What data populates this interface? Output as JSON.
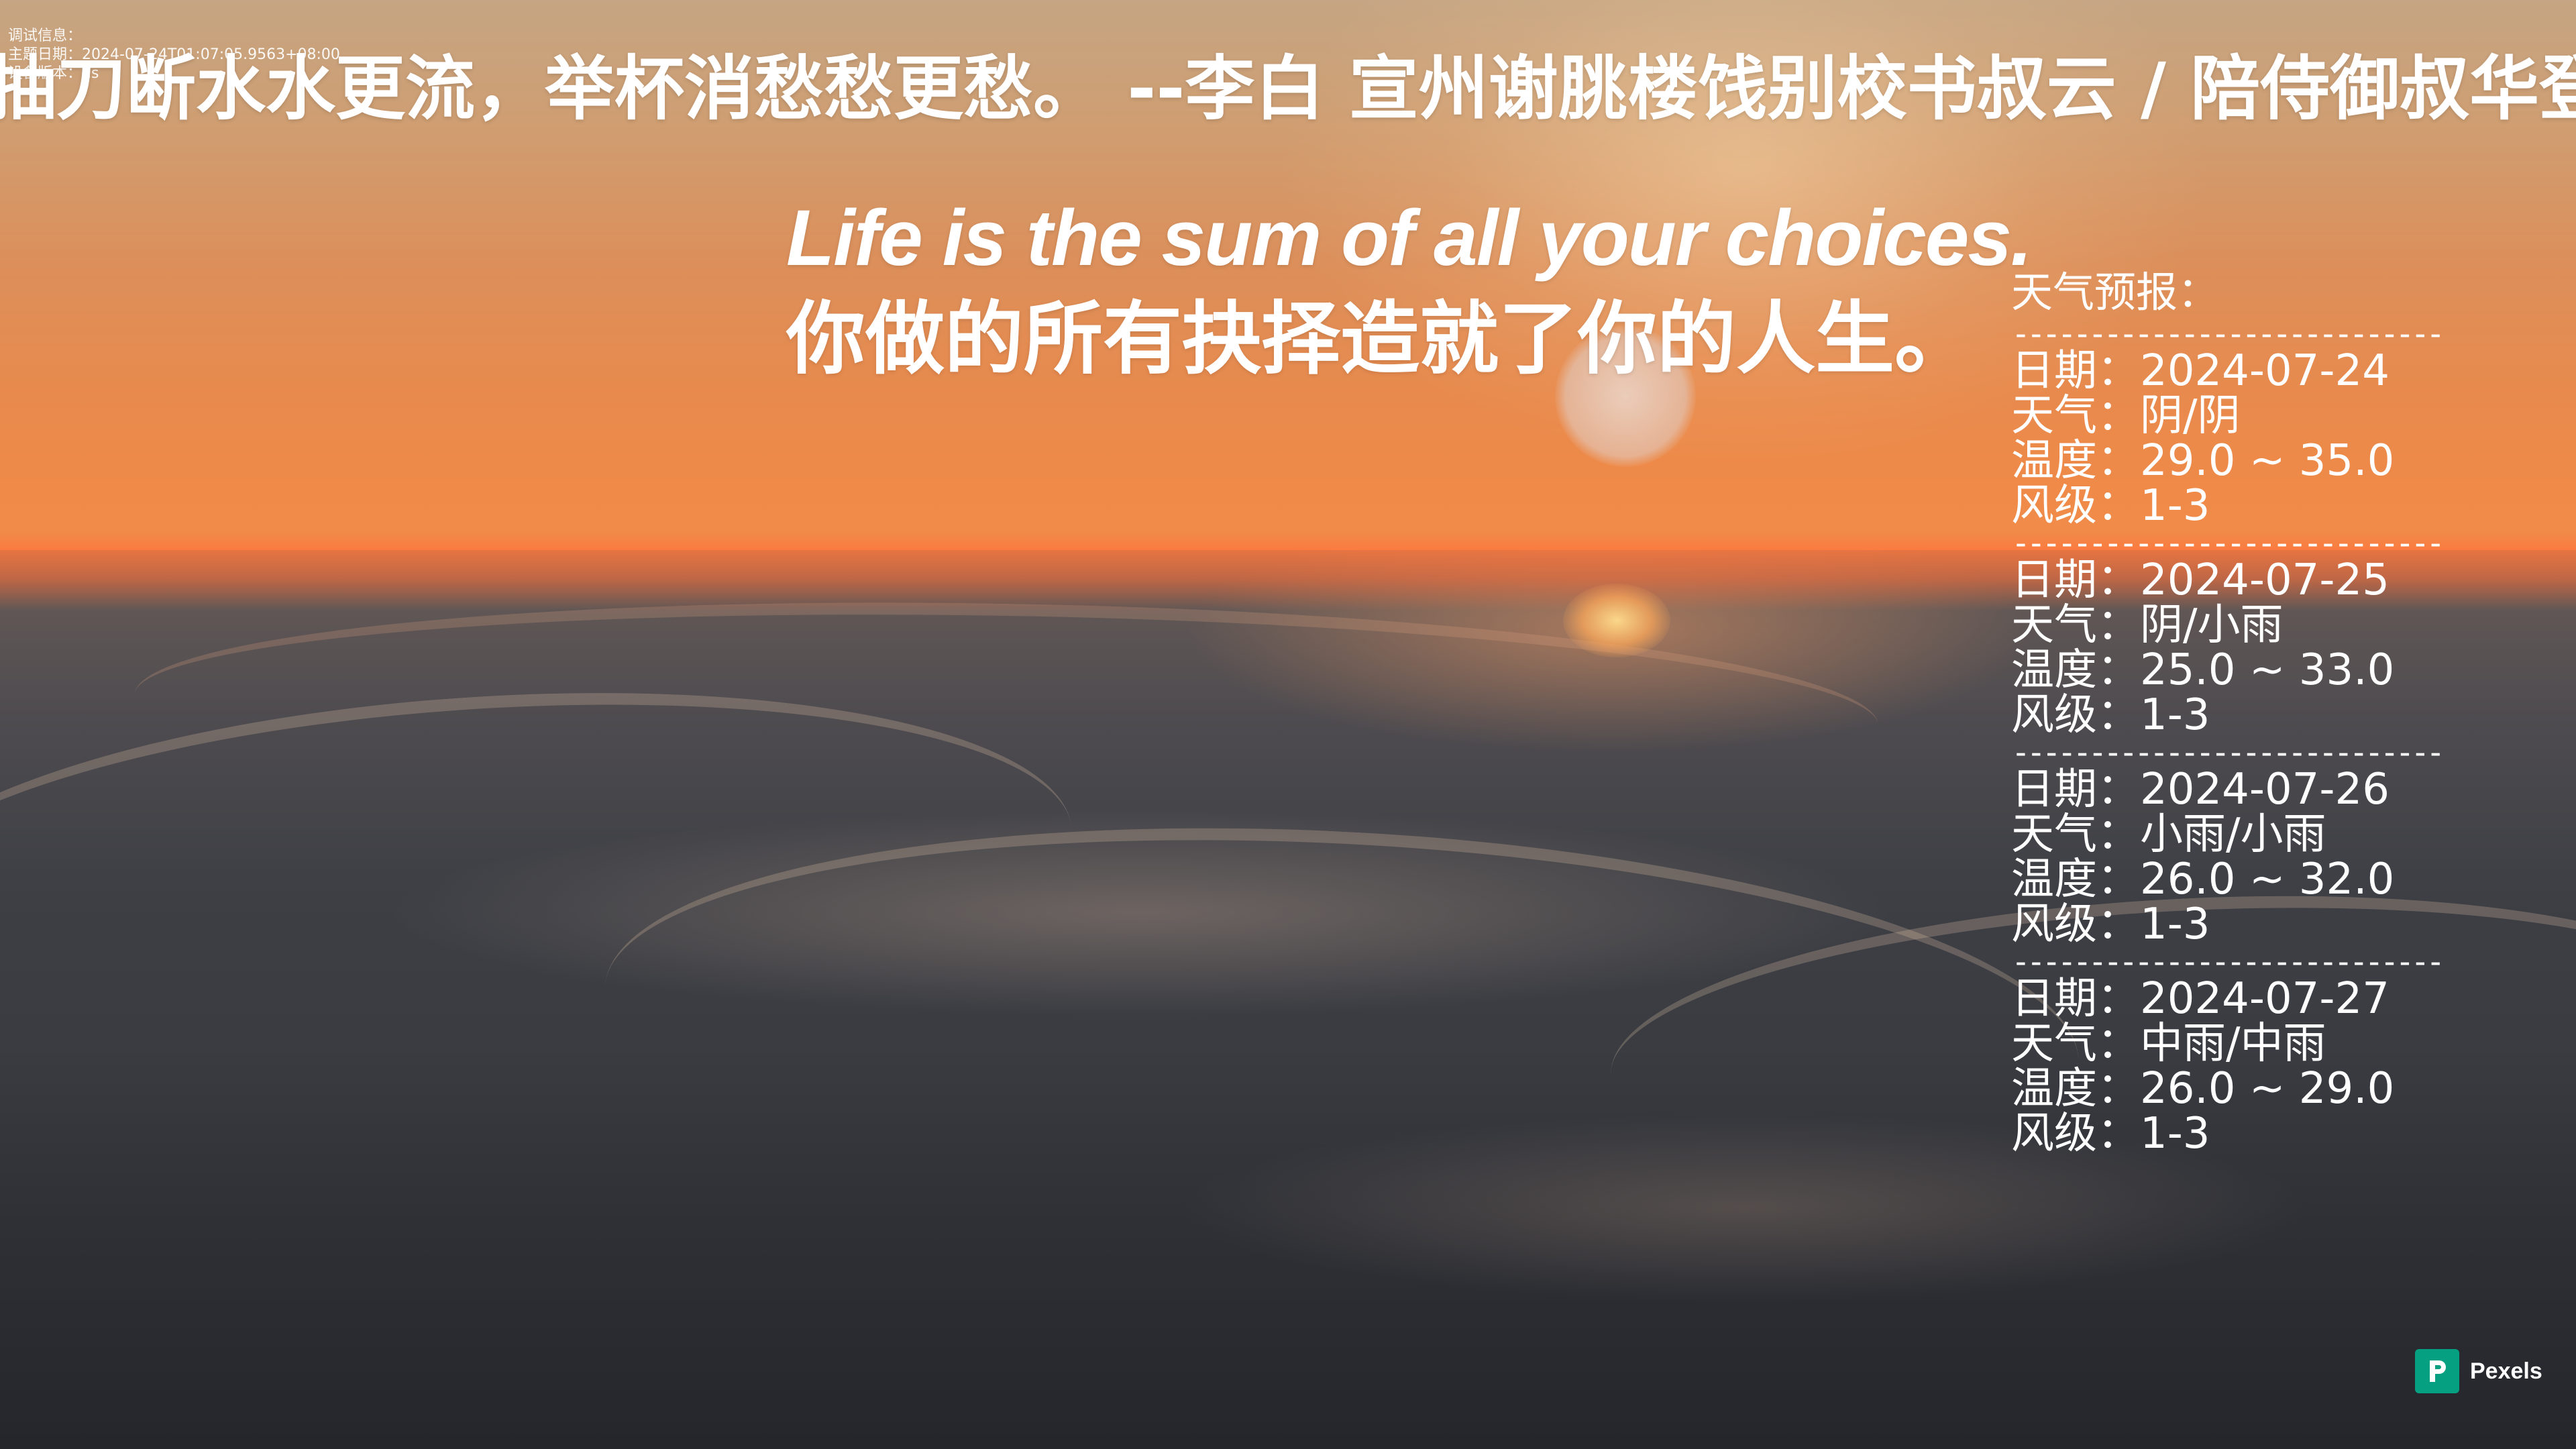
{
  "debug": {
    "title": "调试信息：",
    "line_date": "主题日期：2024-07-24T01:07:05.9563+08:00",
    "line_remote": "设备版本：us"
  },
  "poem": {
    "text": "抽刀断水水更流，举杯消愁愁更愁。  --李白 宣州谢朓楼饯别校书叔云 / 陪侍御叔华登楼歌"
  },
  "quote": {
    "en": "Life is the sum of all your choices.",
    "zh": "你做的所有抉择造就了你的人生。"
  },
  "weather": {
    "title": "天气预报：",
    "divider": "-----------------------------",
    "days": [
      {
        "date": "日期：2024-07-24",
        "weather": "天气：阴/阴",
        "temp": "温度：29.0 ~ 35.0",
        "wind": "风级：1-3"
      },
      {
        "date": "日期：2024-07-25",
        "weather": "天气：阴/小雨",
        "temp": "温度：25.0 ~ 33.0",
        "wind": "风级：1-3"
      },
      {
        "date": "日期：2024-07-26",
        "weather": "天气：小雨/小雨",
        "temp": "温度：26.0 ~ 32.0",
        "wind": "风级：1-3"
      },
      {
        "date": "日期：2024-07-27",
        "weather": "天气：中雨/中雨",
        "temp": "温度：26.0 ~ 29.0",
        "wind": "风级：1-3"
      }
    ]
  },
  "credit": {
    "label": "Pexels",
    "icon": "pexels-logo-icon",
    "color": "#05a081"
  },
  "colors": {
    "sky_top": "#c5a583",
    "horizon": "#f08c4a",
    "sea": "#3a3c42"
  }
}
